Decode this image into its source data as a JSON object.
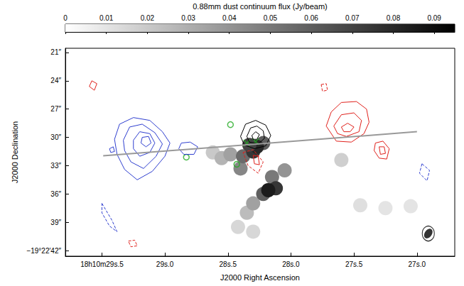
{
  "chart_data": {
    "type": "scatter",
    "x_label": "J2000 Right Ascension",
    "y_label": "J2000 Declination",
    "xlim": [
      29.79,
      26.7
    ],
    "xticks": [
      {
        "value": 29.5,
        "label": "18h10m29s.5"
      },
      {
        "value": 29.0,
        "label": "29s.0"
      },
      {
        "value": 28.5,
        "label": "28s.5"
      },
      {
        "value": 28.0,
        "label": "28s.0"
      },
      {
        "value": 27.5,
        "label": "27s.5"
      },
      {
        "value": 27.0,
        "label": "27s.0"
      }
    ],
    "ylim": [
      42.6,
      20.55
    ],
    "yticks": [
      {
        "value": 21,
        "label": "21″"
      },
      {
        "value": 24,
        "label": "24″"
      },
      {
        "value": 27,
        "label": "27″"
      },
      {
        "value": 30,
        "label": "30″"
      },
      {
        "value": 33,
        "label": "33″"
      },
      {
        "value": 36,
        "label": "36″"
      },
      {
        "value": 39,
        "label": "39″"
      },
      {
        "value": 42,
        "label": "−19°22′42″"
      }
    ],
    "grid": false,
    "colorbar": {
      "label": "0.88mm dust continuum flux (Jy/beam)",
      "range": [
        0,
        0.095
      ],
      "ticks": [
        0,
        0.01,
        0.02,
        0.03,
        0.04,
        0.05,
        0.06,
        0.07,
        0.08,
        0.09
      ]
    },
    "emission": {
      "points": [
        [
          28.42,
          39.5,
          0.015
        ],
        [
          28.3,
          40.0,
          0.015
        ],
        [
          27.45,
          37.2,
          0.012
        ],
        [
          27.25,
          37.5,
          0.01
        ],
        [
          27.05,
          37.3,
          0.01
        ],
        [
          27.6,
          32.4,
          0.018
        ],
        [
          28.62,
          31.6,
          0.02
        ],
        [
          28.55,
          32.2,
          0.028
        ],
        [
          28.48,
          31.8,
          0.035
        ],
        [
          28.35,
          38.0,
          0.025
        ],
        [
          28.3,
          37.0,
          0.035
        ],
        [
          28.05,
          33.5,
          0.04
        ],
        [
          28.4,
          33.3,
          0.045
        ],
        [
          28.15,
          34.2,
          0.05
        ],
        [
          28.22,
          36.0,
          0.06
        ],
        [
          28.12,
          35.4,
          0.075
        ],
        [
          28.18,
          35.6,
          0.085
        ],
        [
          28.38,
          32.0,
          0.055
        ],
        [
          28.22,
          30.6,
          0.06
        ],
        [
          28.3,
          31.5,
          0.075
        ],
        [
          28.27,
          31.0,
          0.08
        ],
        [
          28.33,
          30.8,
          0.07
        ]
      ]
    },
    "contours": [
      {
        "color": "#2f3fd0",
        "line_style": "solid",
        "levels": [
          [
            [
              29.4,
              30.2
            ],
            [
              29.36,
              28.6
            ],
            [
              29.25,
              27.9
            ],
            [
              29.12,
              28.2
            ],
            [
              29.02,
              29.4
            ],
            [
              28.96,
              30.6
            ],
            [
              29.0,
              32.0
            ],
            [
              29.1,
              33.6
            ],
            [
              29.22,
              34.5
            ],
            [
              29.32,
              33.4
            ],
            [
              29.38,
              31.8
            ]
          ],
          [
            [
              29.33,
              30.3
            ],
            [
              29.28,
              28.9
            ],
            [
              29.18,
              28.6
            ],
            [
              29.08,
              29.5
            ],
            [
              29.02,
              30.7
            ],
            [
              29.07,
              32.0
            ],
            [
              29.17,
              33.3
            ],
            [
              29.27,
              32.6
            ],
            [
              29.32,
              31.4
            ]
          ],
          [
            [
              29.25,
              30.3
            ],
            [
              29.2,
              29.4
            ],
            [
              29.12,
              29.6
            ],
            [
              29.08,
              30.6
            ],
            [
              29.12,
              31.6
            ],
            [
              29.2,
              32.0
            ],
            [
              29.25,
              31.2
            ]
          ],
          [
            [
              29.18,
              30.0
            ],
            [
              29.13,
              29.9
            ],
            [
              29.11,
              30.6
            ],
            [
              29.15,
              31.0
            ],
            [
              29.19,
              30.6
            ]
          ],
          [
            [
              28.87,
              30.6
            ],
            [
              28.8,
              30.5
            ],
            [
              28.74,
              31.0
            ],
            [
              28.77,
              31.8
            ],
            [
              28.85,
              31.8
            ],
            [
              28.89,
              31.2
            ]
          ],
          [
            [
              29.44,
              31.2
            ],
            [
              29.41,
              31.0
            ],
            [
              29.4,
              31.5
            ],
            [
              29.43,
              31.6
            ]
          ]
        ]
      },
      {
        "color": "#2f3fd0",
        "line_style": "dashed",
        "levels": [
          [
            [
              29.5,
              37.0
            ],
            [
              29.42,
              38.8
            ],
            [
              29.38,
              40.0
            ],
            [
              29.44,
              39.4
            ],
            [
              29.5,
              38.0
            ]
          ],
          [
            [
              26.96,
              32.8
            ],
            [
              26.9,
              33.5
            ],
            [
              26.92,
              34.6
            ],
            [
              26.98,
              33.8
            ]
          ]
        ]
      },
      {
        "color": "#e0201b",
        "line_style": "solid",
        "levels": [
          [
            [
              27.72,
              28.8
            ],
            [
              27.68,
              27.3
            ],
            [
              27.6,
              26.3
            ],
            [
              27.48,
              26.2
            ],
            [
              27.4,
              27.0
            ],
            [
              27.38,
              28.4
            ],
            [
              27.42,
              29.6
            ],
            [
              27.52,
              30.5
            ],
            [
              27.64,
              30.4
            ]
          ],
          [
            [
              27.66,
              28.8
            ],
            [
              27.6,
              27.6
            ],
            [
              27.5,
              27.4
            ],
            [
              27.44,
              28.2
            ],
            [
              27.46,
              29.4
            ],
            [
              27.56,
              29.9
            ],
            [
              27.63,
              29.6
            ]
          ],
          [
            [
              27.6,
              28.9
            ],
            [
              27.55,
              28.5
            ],
            [
              27.5,
              28.9
            ],
            [
              27.53,
              29.4
            ],
            [
              27.58,
              29.4
            ]
          ],
          [
            [
              27.33,
              30.6
            ],
            [
              27.27,
              30.4
            ],
            [
              27.22,
              31.2
            ],
            [
              27.24,
              32.3
            ],
            [
              27.3,
              32.2
            ],
            [
              27.34,
              31.4
            ]
          ],
          [
            [
              27.3,
              31.0
            ],
            [
              27.26,
              31.0
            ],
            [
              27.25,
              31.7
            ],
            [
              27.29,
              31.8
            ]
          ],
          [
            [
              28.3,
              31.9
            ],
            [
              28.26,
              32.0
            ],
            [
              28.25,
              32.9
            ],
            [
              28.29,
              32.8
            ]
          ],
          [
            [
              29.58,
              24.0
            ],
            [
              29.54,
              24.3
            ],
            [
              29.56,
              25.0
            ],
            [
              29.6,
              24.6
            ]
          ]
        ]
      },
      {
        "color": "#e0201b",
        "line_style": "dashed",
        "levels": [
          [
            [
              28.38,
              31.6
            ],
            [
              28.3,
              31.3
            ],
            [
              28.22,
              32.6
            ],
            [
              28.26,
              33.8
            ],
            [
              28.34,
              33.0
            ]
          ],
          [
            [
              27.76,
              24.4
            ],
            [
              27.72,
              24.3
            ],
            [
              27.71,
              25.0
            ],
            [
              27.75,
              25.1
            ]
          ],
          [
            [
              29.29,
              41.0
            ],
            [
              29.24,
              40.9
            ],
            [
              29.22,
              41.5
            ],
            [
              29.27,
              41.6
            ]
          ]
        ]
      },
      {
        "color": "#000000",
        "line_style": "solid",
        "levels": [
          [
            [
              28.4,
              29.9
            ],
            [
              28.36,
              28.6
            ],
            [
              28.28,
              28.2
            ],
            [
              28.2,
              28.7
            ],
            [
              28.16,
              29.8
            ],
            [
              28.2,
              30.9
            ],
            [
              28.29,
              31.2
            ],
            [
              28.37,
              30.8
            ]
          ],
          [
            [
              28.35,
              29.9
            ],
            [
              28.32,
              29.0
            ],
            [
              28.27,
              28.8
            ],
            [
              28.22,
              29.3
            ],
            [
              28.21,
              30.1
            ],
            [
              28.26,
              30.7
            ],
            [
              28.33,
              30.5
            ]
          ],
          [
            [
              28.31,
              29.8
            ],
            [
              28.28,
              29.4
            ],
            [
              28.25,
              29.7
            ],
            [
              28.27,
              30.2
            ],
            [
              28.3,
              30.2
            ]
          ]
        ]
      }
    ],
    "markers": [
      {
        "marker": "x",
        "color": "#22aa22",
        "points": [
          [
            28.35,
            30.6
          ],
          [
            28.28,
            30.45
          ]
        ]
      },
      {
        "marker": "circle",
        "color": "#22aa22",
        "points": [
          [
            28.48,
            28.65
          ],
          [
            28.43,
            32.85
          ],
          [
            28.83,
            32.1
          ]
        ]
      }
    ],
    "line": {
      "color": "#999999",
      "points": [
        [
          29.49,
          31.95
        ],
        [
          27.0,
          29.4
        ]
      ]
    },
    "beam": {
      "x": 26.91,
      "y": 40.2
    }
  }
}
